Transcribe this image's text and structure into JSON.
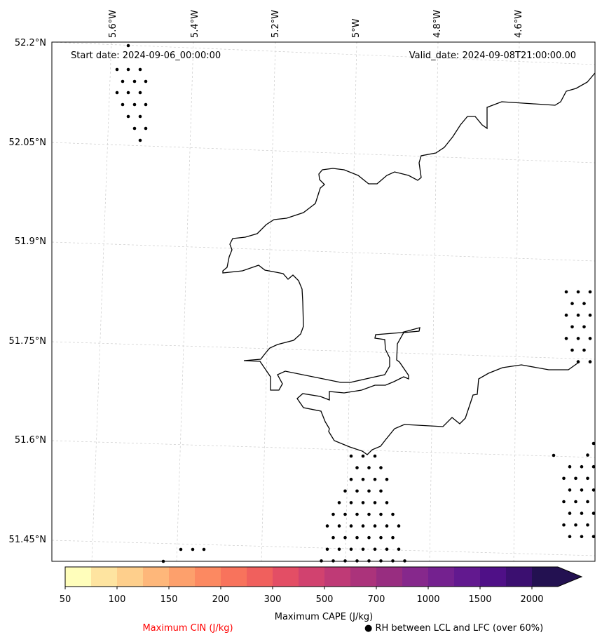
{
  "map": {
    "start_date_label": "Start date: 2024-09-06_00:00:00",
    "valid_date_label": "Valid_date: 2024-09-08T21:00:00.00",
    "lon_labels": [
      "5.6°W",
      "5.4°W",
      "5.2°W",
      "5°W",
      "4.8°W",
      "4.6°W"
    ],
    "lat_labels": [
      "52.2°N",
      "52.05°N",
      "51.9°N",
      "51.75°N",
      "51.6°N",
      "51.45°N"
    ],
    "gridlines": true,
    "coastline_color": "#000000",
    "stipple_color": "#000000"
  },
  "colorbar": {
    "title": "Maximum CAPE (J/kg)",
    "tick_labels": [
      "50",
      "100",
      "150",
      "200",
      "300",
      "500",
      "700",
      "1000",
      "1500",
      "2000"
    ],
    "extend": "max",
    "colors": [
      "#fffebb",
      "#fee4a0",
      "#fecf8c",
      "#feb77a",
      "#fda06c",
      "#fc8961",
      "#f8735c",
      "#f0605d",
      "#e34e65",
      "#d1426f",
      "#bf3a76",
      "#ab337b",
      "#982d80",
      "#86288c",
      "#74218f",
      "#62198f",
      "#4f1087",
      "#3b0f70",
      "#231151"
    ]
  },
  "legend": {
    "cin_label": "Maximum CIN (J/kg)",
    "cin_color": "#ff0000",
    "rh_label": "● RH between LCL and LFC (over 60%)"
  }
}
